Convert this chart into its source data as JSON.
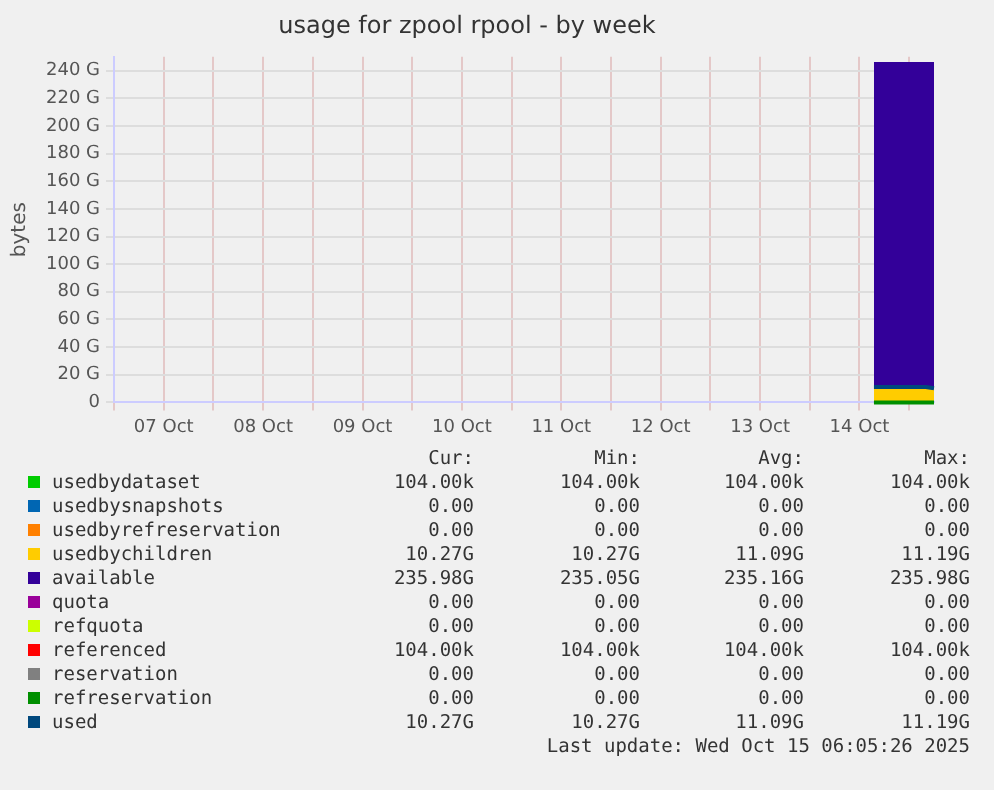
{
  "chart_data": {
    "type": "area",
    "title": "usage for zpool rpool - by week",
    "ylabel": "bytes",
    "stacked": true,
    "grid": true,
    "legend": "bottom",
    "x": [
      "2025-10-14T15:30",
      "2025-10-14T20:00",
      "2025-10-15T00:00",
      "2025-10-15T04:00",
      "2025-10-15T06:00"
    ],
    "xlim": [
      "2025-10-07T00:00",
      "2025-10-15T06:00"
    ],
    "xticks": [
      {
        "value": "2025-10-07T00:00",
        "label": null
      },
      {
        "value": "2025-10-07T12:00",
        "label": "07 Oct"
      },
      {
        "value": "2025-10-08T00:00",
        "label": null
      },
      {
        "value": "2025-10-08T12:00",
        "label": "08 Oct"
      },
      {
        "value": "2025-10-09T00:00",
        "label": null
      },
      {
        "value": "2025-10-09T12:00",
        "label": "09 Oct"
      },
      {
        "value": "2025-10-10T00:00",
        "label": null
      },
      {
        "value": "2025-10-10T12:00",
        "label": "10 Oct"
      },
      {
        "value": "2025-10-11T00:00",
        "label": null
      },
      {
        "value": "2025-10-11T12:00",
        "label": "11 Oct"
      },
      {
        "value": "2025-10-12T00:00",
        "label": null
      },
      {
        "value": "2025-10-12T12:00",
        "label": "12 Oct"
      },
      {
        "value": "2025-10-13T00:00",
        "label": null
      },
      {
        "value": "2025-10-13T12:00",
        "label": "13 Oct"
      },
      {
        "value": "2025-10-14T00:00",
        "label": null
      },
      {
        "value": "2025-10-14T12:00",
        "label": "14 Oct"
      },
      {
        "value": "2025-10-15T00:00",
        "label": null
      }
    ],
    "ylim": [
      0,
      250
    ],
    "yticks": [
      0,
      {
        "value": 20,
        "label": "20 G"
      },
      {
        "value": 40,
        "label": "40 G"
      },
      {
        "value": 60,
        "label": "60 G"
      },
      {
        "value": 80,
        "label": "80 G"
      },
      {
        "value": 100,
        "label": "100 G"
      },
      {
        "value": 120,
        "label": "120 G"
      },
      {
        "value": 140,
        "label": "140 G"
      },
      {
        "value": 160,
        "label": "160 G"
      },
      {
        "value": 180,
        "label": "180 G"
      },
      {
        "value": 200,
        "label": "200 G"
      },
      {
        "value": 220,
        "label": "220 G"
      },
      {
        "value": 240,
        "label": "240 G"
      }
    ],
    "series": [
      {
        "name": "usedbydataset",
        "color": "#00cc00",
        "values": [
          null,
          null,
          null,
          null,
          null
        ]
      },
      {
        "name": "usedbysnapshots",
        "color": "#0066b3",
        "values": [
          null,
          null,
          null,
          null,
          null
        ]
      },
      {
        "name": "usedbyrefreservation",
        "color": "#ff8000",
        "values": [
          null,
          null,
          null,
          null,
          null
        ]
      },
      {
        "name": "usedbychildren",
        "color": "#ffcc00",
        "values": [
          11.2,
          11.2,
          11.2,
          11.2,
          10.3
        ]
      },
      {
        "name": "available",
        "color": "#330099",
        "values": [
          235,
          235,
          235,
          235,
          236
        ]
      },
      {
        "name": "quota",
        "color": "#990099",
        "type": "line",
        "values": [
          null,
          null,
          null,
          null,
          null
        ]
      },
      {
        "name": "refquota",
        "color": "#ccff00",
        "type": "line",
        "values": [
          null,
          null,
          null,
          null,
          null
        ]
      },
      {
        "name": "referenced",
        "color": "#ff0000",
        "type": "line",
        "values": [
          null,
          null,
          null,
          null,
          null
        ]
      },
      {
        "name": "reservation",
        "color": "#808080",
        "type": "line",
        "values": [
          null,
          null,
          null,
          null,
          null
        ]
      },
      {
        "name": "refreservation",
        "color": "#008f00",
        "type": "line",
        "values": [
          0,
          0,
          0,
          0,
          0
        ]
      },
      {
        "name": "used",
        "color": "#00487d",
        "type": "line",
        "values": [
          11.2,
          11.2,
          11.2,
          11.2,
          10.3
        ]
      }
    ],
    "annotations": [
      "Cur:",
      "Min:",
      "Avg:",
      "Max:",
      "104.00k",
      "104.00k",
      "104.00k",
      "104.00k",
      "0.00",
      "0.00",
      "0.00",
      "0.00",
      "0.00",
      "0.00",
      "0.00",
      "0.00",
      "10.27G",
      "10.27G",
      "11.09G",
      "11.19G",
      "235.98G",
      "235.05G",
      "235.16G",
      "235.98G",
      "0.00",
      "0.00",
      "0.00",
      "0.00",
      "0.00",
      "0.00",
      "0.00",
      "0.00",
      "104.00k",
      "104.00k",
      "104.00k",
      "104.00k",
      "0.00",
      "0.00",
      "0.00",
      "0.00",
      "0.00",
      "0.00",
      "0.00",
      "0.00",
      "10.27G",
      "10.27G",
      "11.09G",
      "11.19G",
      "Last update: Wed Oct 15 06:05:26 2025"
    ]
  }
}
